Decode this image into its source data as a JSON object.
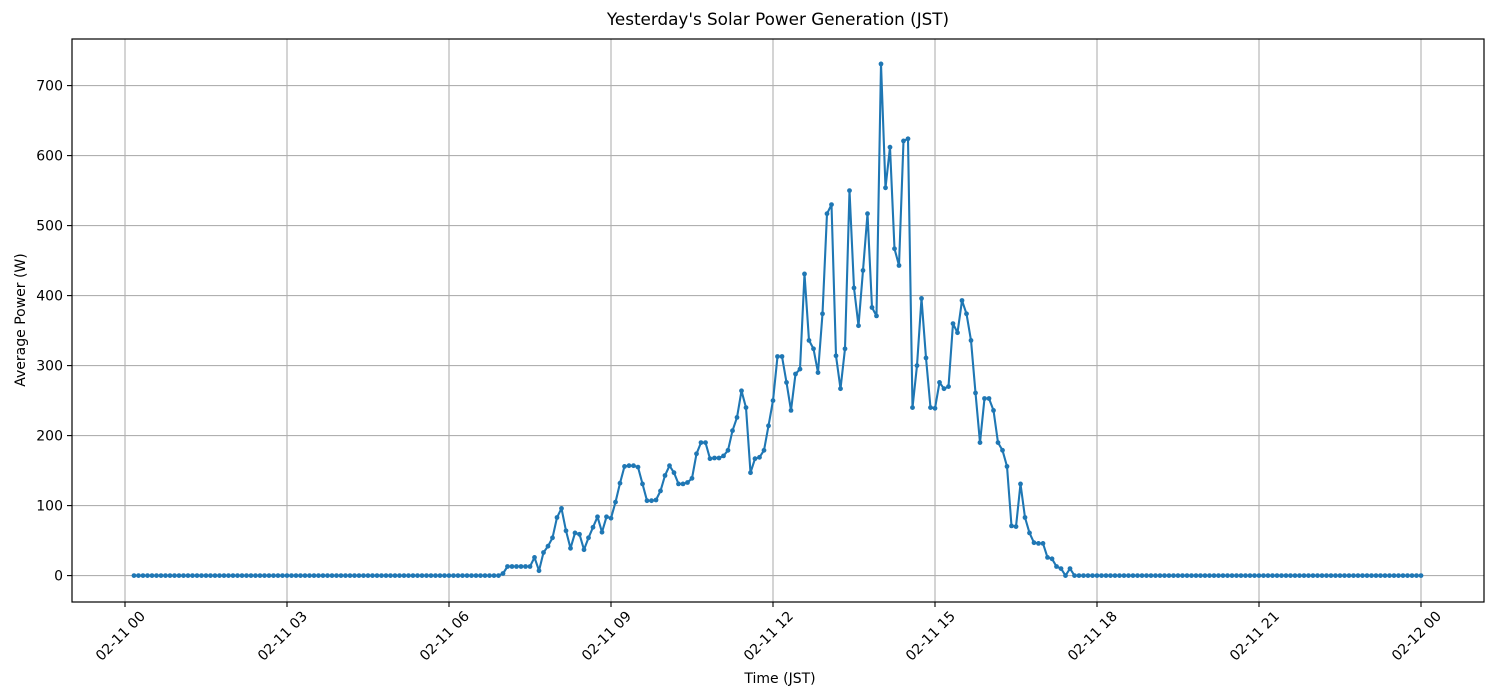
{
  "chart_data": {
    "type": "line",
    "title": "Yesterday's Solar Power Generation (JST)",
    "xlabel": "Time (JST)",
    "ylabel": "Average Power (W)",
    "legend": null,
    "grid": true,
    "line_color": "#1f77b4",
    "marker": "circle",
    "x_tick_hours": [
      0,
      3,
      6,
      9,
      12,
      15,
      18,
      21,
      24
    ],
    "x_tick_labels": [
      "02-11 00",
      "02-11 03",
      "02-11 06",
      "02-11 09",
      "02-11 12",
      "02-11 15",
      "02-11 18",
      "02-11 21",
      "02-12 00"
    ],
    "y_ticks": [
      0,
      100,
      200,
      300,
      400,
      500,
      600,
      700
    ],
    "ylim": [
      -36.6,
      767.6
    ],
    "xlim_hours": [
      -1.11,
      25.19
    ],
    "start_time": "02-11 00:10",
    "end_time": "02-12 00:00",
    "start_offset_minutes": 10,
    "interval_minutes": 5,
    "values": [
      0,
      0,
      0,
      0,
      0,
      0,
      0,
      0,
      0,
      0,
      0,
      0,
      0,
      0,
      0,
      0,
      0,
      0,
      0,
      0,
      0,
      0,
      0,
      0,
      0,
      0,
      0,
      0,
      0,
      0,
      0,
      0,
      0,
      0,
      0,
      0,
      0,
      0,
      0,
      0,
      0,
      0,
      0,
      0,
      0,
      0,
      0,
      0,
      0,
      0,
      0,
      0,
      0,
      0,
      0,
      0,
      0,
      0,
      0,
      0,
      0,
      0,
      0,
      0,
      0,
      0,
      0,
      0,
      0,
      0,
      0,
      0,
      0,
      0,
      0,
      0,
      0,
      0,
      0,
      0,
      0,
      0,
      3,
      13,
      13,
      13,
      13,
      13,
      13,
      26,
      7,
      33,
      42,
      54,
      83,
      96,
      64,
      39,
      61,
      59,
      37,
      54,
      69,
      84,
      62,
      84,
      82,
      105,
      132,
      156,
      157,
      157,
      155,
      131,
      107,
      107,
      108,
      121,
      143,
      157,
      147,
      131,
      131,
      133,
      139,
      174,
      190,
      190,
      167,
      168,
      168,
      171,
      179,
      207,
      226,
      264,
      240,
      147,
      167,
      169,
      179,
      214,
      250,
      313,
      313,
      276,
      236,
      288,
      295,
      431,
      336,
      324,
      290,
      374,
      517,
      530,
      314,
      267,
      324,
      550,
      411,
      357,
      436,
      517,
      383,
      371,
      731,
      554,
      612,
      467,
      443,
      621,
      624,
      240,
      300,
      396,
      311,
      240,
      239,
      276,
      267,
      270,
      360,
      347,
      393,
      374,
      336,
      261,
      190,
      253,
      253,
      236,
      190,
      179,
      156,
      71,
      70,
      131,
      83,
      61,
      47,
      46,
      46,
      26,
      24,
      13,
      10,
      0,
      10,
      0,
      0,
      0,
      0,
      0,
      0,
      0,
      0,
      0,
      0,
      0,
      0,
      0,
      0,
      0,
      0,
      0,
      0,
      0,
      0,
      0,
      0,
      0,
      0,
      0,
      0,
      0,
      0,
      0,
      0,
      0,
      0,
      0,
      0,
      0,
      0,
      0,
      0,
      0,
      0,
      0,
      0,
      0,
      0,
      0,
      0,
      0,
      0,
      0,
      0,
      0,
      0,
      0,
      0,
      0,
      0,
      0,
      0,
      0,
      0,
      0,
      0,
      0,
      0,
      0,
      0,
      0,
      0,
      0,
      0,
      0,
      0,
      0,
      0,
      0,
      0,
      0,
      0
    ]
  }
}
